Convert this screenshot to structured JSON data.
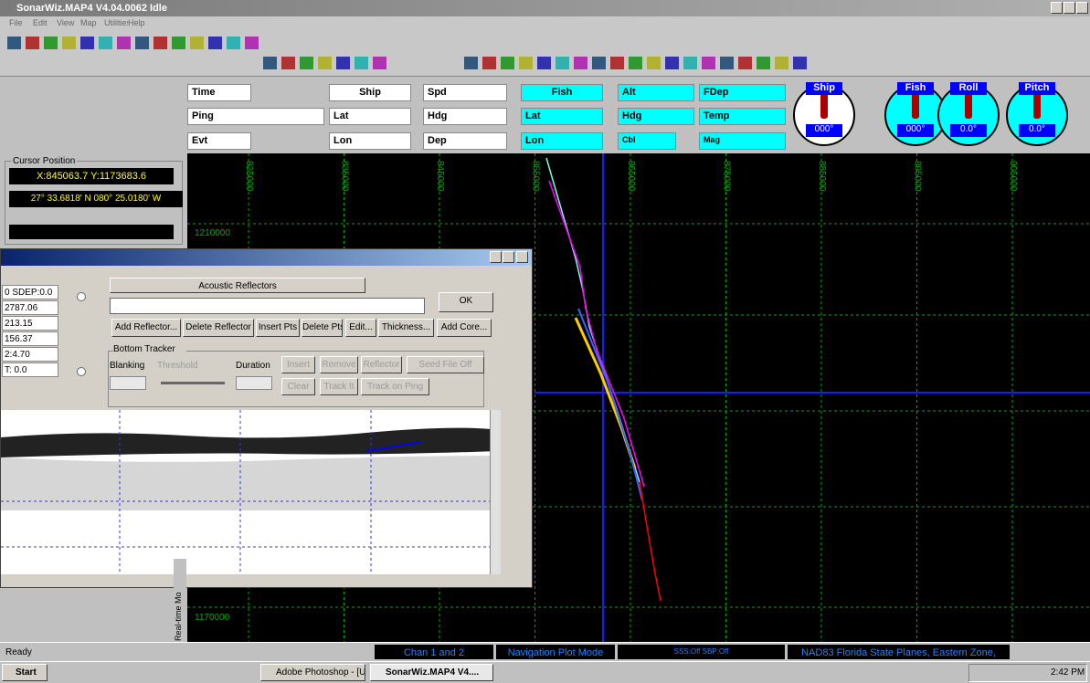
{
  "window": {
    "title": "SonarWiz.MAP4 V4.04.0062 Idle"
  },
  "menu": [
    "File",
    "Edit",
    "View",
    "Map",
    "Utilities",
    "Help"
  ],
  "instruments": {
    "time": "Time",
    "ping": "Ping",
    "evt": "Evt",
    "ship": "Ship",
    "ship_lat": "Lat",
    "ship_lon": "Lon",
    "spd": "Spd",
    "hdg": "Hdg",
    "dep": "Dep",
    "fish": "Fish",
    "fish_lat": "Lat",
    "fish_lon": "Lon",
    "alt": "Alt",
    "fish_hdg": "Hdg",
    "cbl": "Cbl",
    "fdep": "FDep",
    "temp": "Temp",
    "mag": "Mag"
  },
  "gauges": [
    {
      "label": "Ship",
      "reading": "000°"
    },
    {
      "label": "Fish",
      "reading": "000°"
    },
    {
      "label": "Roll",
      "reading": "0.0°"
    },
    {
      "label": "Pitch",
      "reading": "0.0°"
    }
  ],
  "cursor_position": {
    "title": "Cursor Position",
    "xy": "X:845063.7 Y:1173683.6",
    "latlon": "27° 33.6818' N 080° 25.0180' W"
  },
  "map": {
    "x_labels": [
      "825000",
      "835000",
      "845000",
      "855000",
      "865000",
      "875000",
      "885000",
      "895000",
      "905000"
    ],
    "y_labels": [
      "1210000",
      "1170000"
    ],
    "side_label": "Real-time Mo"
  },
  "dialog": {
    "left_values": [
      "0 SDEP:0.0",
      "2787.06",
      "213.15",
      "156.37",
      "2:4.70",
      "T: 0.0"
    ],
    "reflectors_title": "Acoustic Reflectors",
    "ok": "OK",
    "reflector_buttons": [
      "Add Reflector...",
      "Delete Reflector",
      "Insert Pts",
      "Delete Pts",
      "Edit...",
      "Thickness...",
      "Add Core..."
    ],
    "bottom_tracker": "Bottom Tracker",
    "blanking": "Blanking",
    "threshold": "Threshold",
    "duration": "Duration",
    "tracker_buttons": [
      "Insert",
      "Remove",
      "Reflector",
      "Seed File Off",
      "Clear",
      "Track It",
      "Track on Ping"
    ]
  },
  "status_bar": [
    "Ready",
    "Chan 1 and 2",
    "Navigation Plot Mode",
    "SSS:Off  SBP:Off",
    "NAD83 Florida State Planes, Eastern Zone,"
  ],
  "taskbar": {
    "start": "Start",
    "tasks": [
      "Adobe Photoshop - [Untitl...",
      "SonarWiz.MAP4 V4...."
    ],
    "clock": "2:42 PM"
  }
}
